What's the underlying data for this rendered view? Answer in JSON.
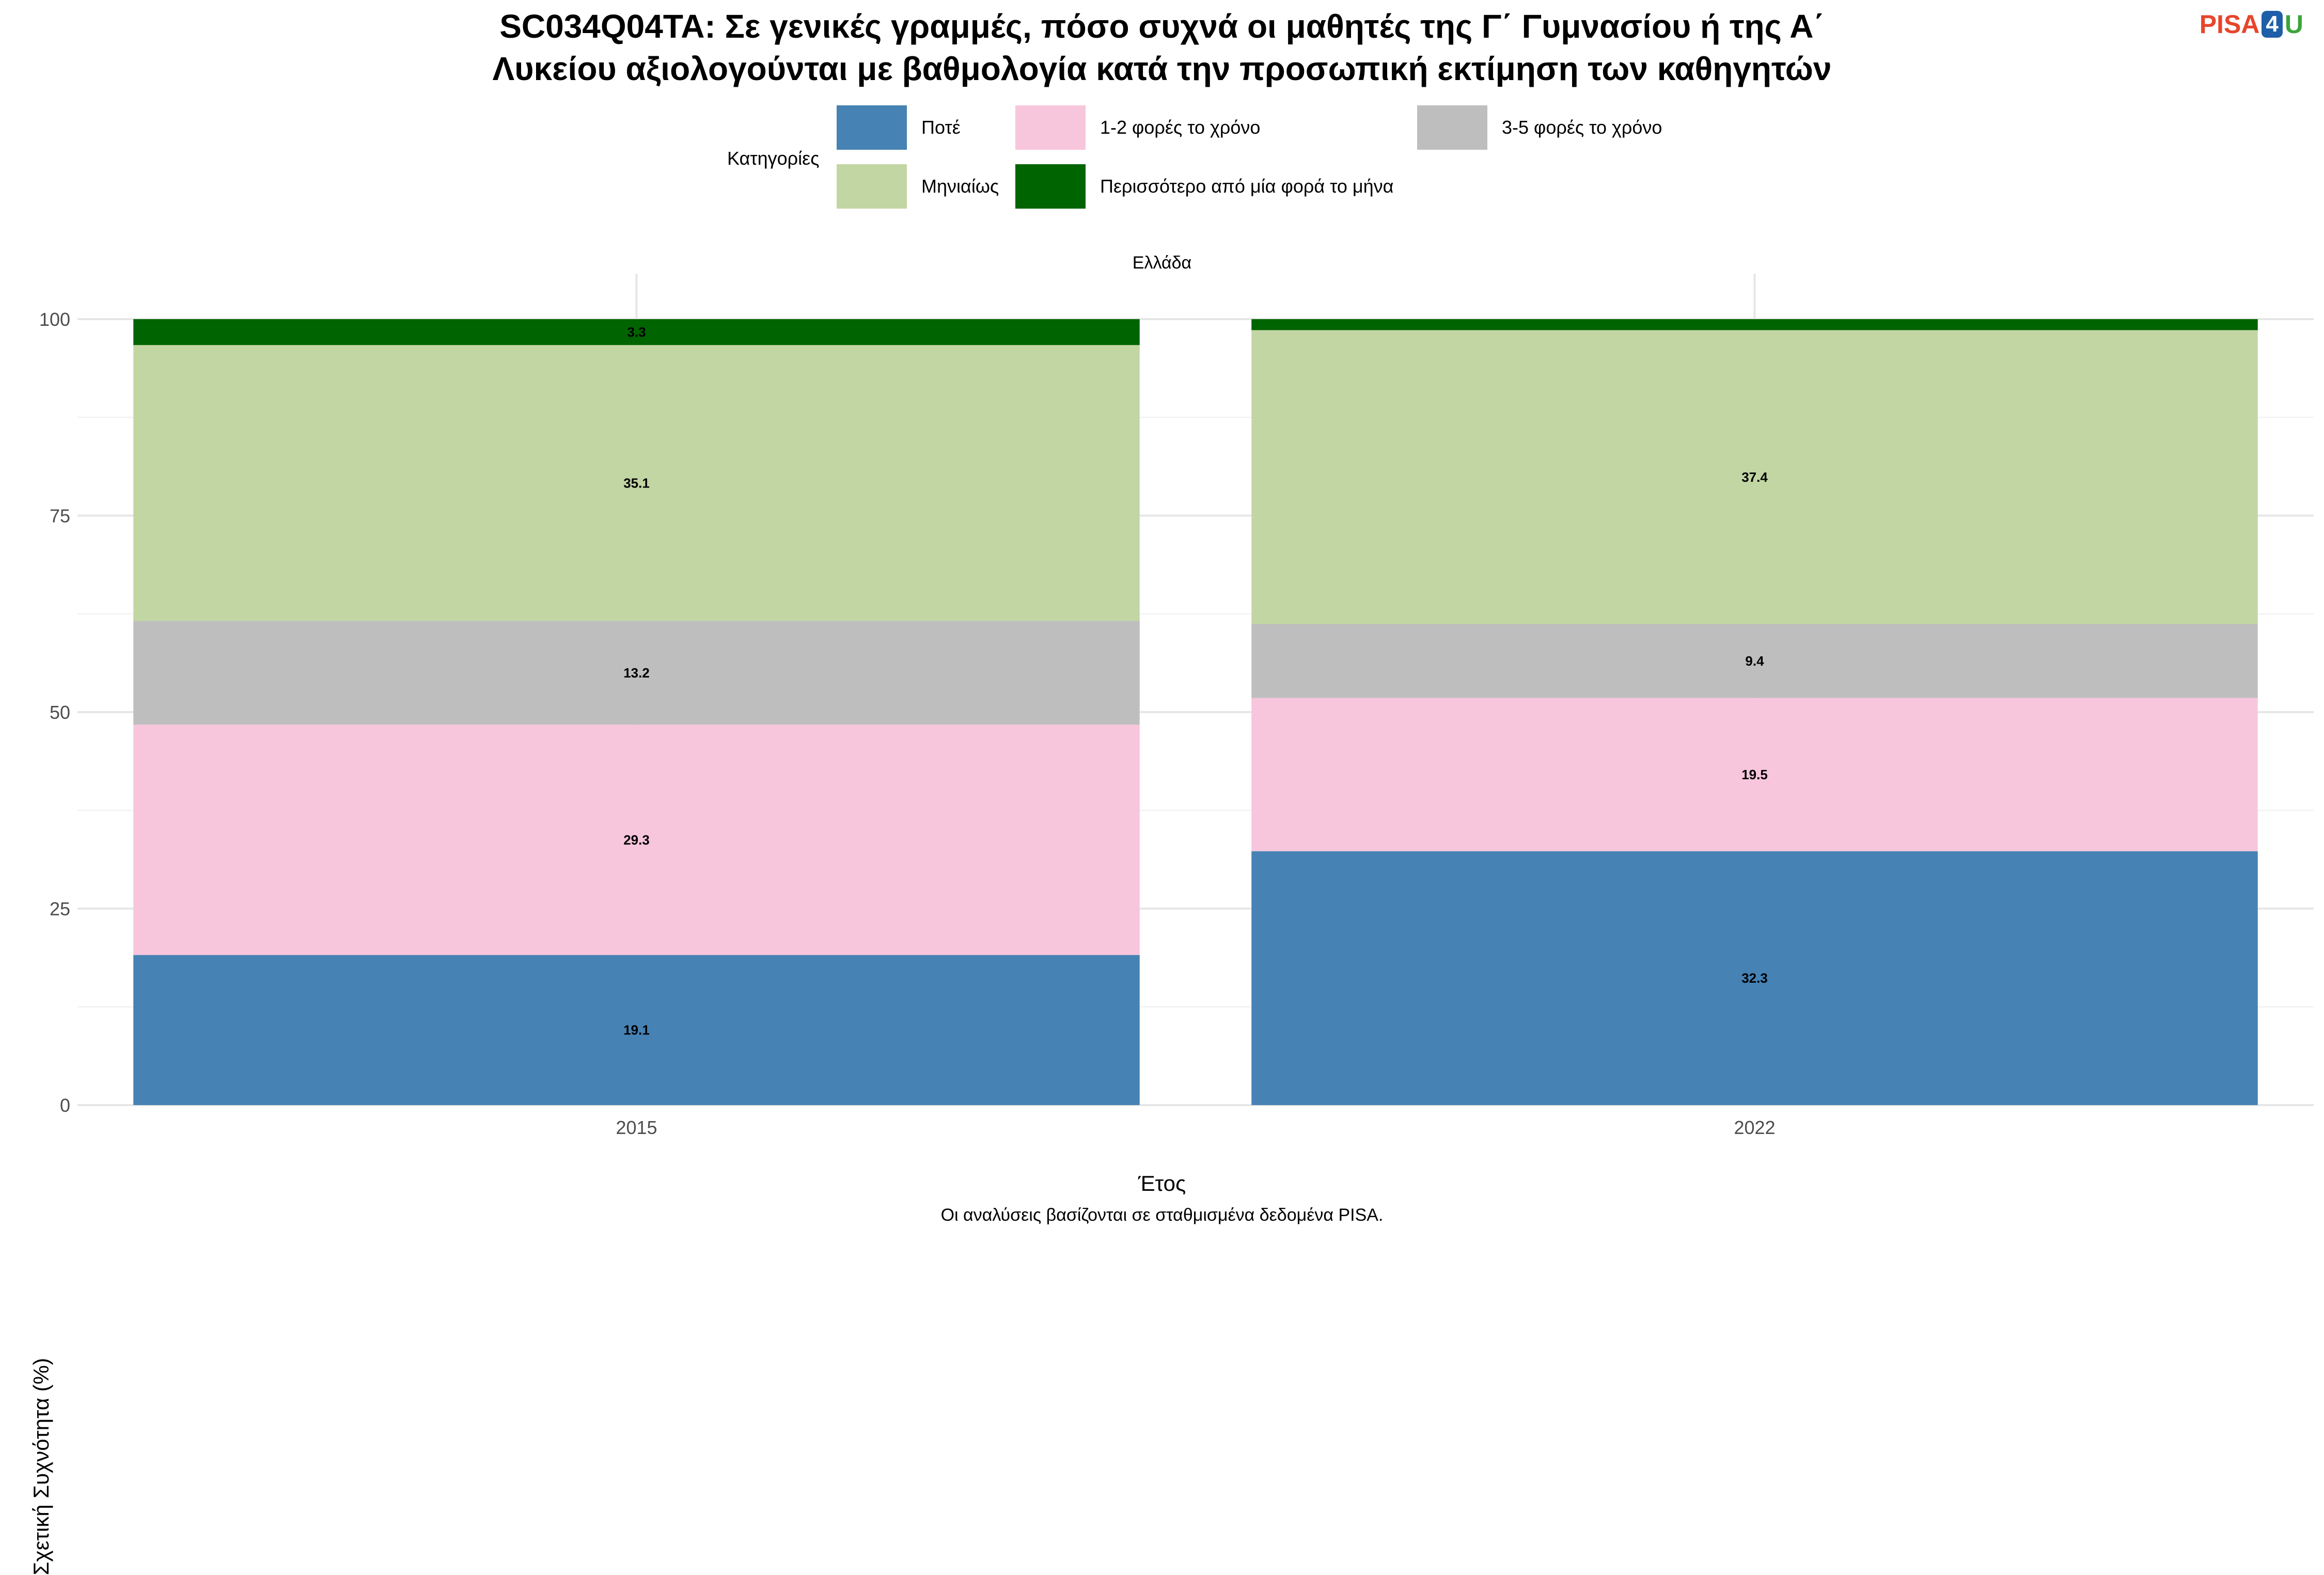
{
  "title_lines": [
    "SC034Q04TA: Σε γενικές γραμμές, πόσο συχνά οι μαθητές της Γ΄ Γυμνασίου ή της Α΄",
    "Λυκείου αξιολογούνται με βαθμολογία κατά την προσωπική εκτίμηση των καθηγητών"
  ],
  "logo": {
    "part1": "PISA",
    "part2": "4",
    "part3": "U"
  },
  "legend": {
    "title": "Κατηγορίες"
  },
  "facet_label": "Ελλάδα",
  "caption": "Οι αναλύσεις βασίζονται σε σταθμισμένα δεδομένα PISA.",
  "chart_data": {
    "type": "bar",
    "stacked": true,
    "categories": [
      "2015",
      "2022"
    ],
    "xlabel": "Έτος",
    "ylabel": "Σχετική Συχνότητα (%)",
    "ylim": [
      0,
      100
    ],
    "yticks": [
      0,
      25,
      50,
      75,
      100
    ],
    "grid": true,
    "legend_position": "top",
    "series": [
      {
        "name": "Ποτέ",
        "color": "#4682b4",
        "values": [
          19.1,
          32.3
        ],
        "labels": [
          "19.1",
          "32.3"
        ]
      },
      {
        "name": "1-2 φορές το χρόνο",
        "color": "#f7c6dc",
        "values": [
          29.3,
          19.5
        ],
        "labels": [
          "29.3",
          "19.5"
        ]
      },
      {
        "name": "3-5 φορές το χρόνο",
        "color": "#bebebe",
        "values": [
          13.2,
          9.4
        ],
        "labels": [
          "13.2",
          "9.4"
        ]
      },
      {
        "name": "Μηνιαίως",
        "color": "#c2d6a4",
        "values": [
          35.1,
          37.4
        ],
        "labels": [
          "35.1",
          "37.4"
        ]
      },
      {
        "name": "Περισσότερο από μία φορά το μήνα",
        "color": "#006400",
        "values": [
          3.3,
          1.4
        ],
        "labels": [
          "3.3",
          ""
        ]
      }
    ]
  }
}
